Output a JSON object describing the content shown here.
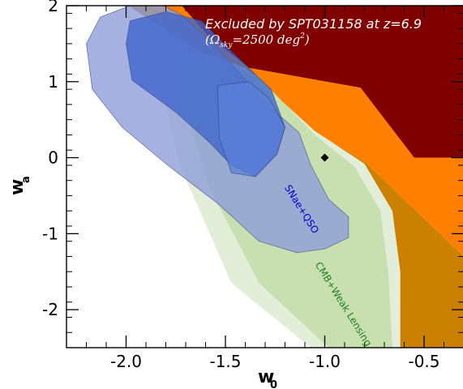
{
  "chart_data": {
    "type": "area",
    "xlabel": "w",
    "xlabel_sub": "0",
    "ylabel": "w",
    "ylabel_sub": "a",
    "xlim": [
      -2.3,
      -0.3
    ],
    "ylim": [
      -2.5,
      2.0
    ],
    "x_ticks": [
      -2.0,
      -1.5,
      -1.0,
      -0.5
    ],
    "x_tick_labels": [
      "-2.0",
      "-1.5",
      "-1.0",
      "-0.5"
    ],
    "y_ticks": [
      -2,
      -1,
      0,
      1,
      2
    ],
    "y_tick_labels": [
      "-2",
      "-1",
      "0",
      "1",
      "2"
    ],
    "grid": false,
    "annotation": {
      "line1": "Excluded by SPT031158 at z=6.9",
      "line2_pre": "(Ω",
      "line2_sub": "sky",
      "line2_mid": "=2500 deg",
      "line2_sup": "2",
      "line2_post": ")"
    },
    "colors": {
      "excluded_dark": "#800000",
      "excluded_orange": "#ff8000",
      "excluded_gold": "#cc8000",
      "cmb_light": "#e2eed8",
      "cmb_dark": "#c8e0b0",
      "sne_light": "#8c9cd8",
      "sne_dark": "#3c64cc",
      "marker": "#000000"
    },
    "marker": {
      "x": -1.0,
      "y": 0.0
    },
    "regions": [
      {
        "name": "Excluded (dark red)",
        "color": "#800000",
        "polygon": [
          [
            -1.72,
            2.0
          ],
          [
            -0.3,
            2.0
          ],
          [
            -0.3,
            0.0
          ],
          [
            -0.55,
            0.0
          ],
          [
            -0.82,
            0.92
          ],
          [
            -1.38,
            1.18
          ],
          [
            -1.58,
            1.58
          ],
          [
            -1.72,
            2.0
          ]
        ]
      },
      {
        "name": "Excluded (orange)",
        "color": "#ff8000",
        "polygon": [
          [
            -1.87,
            2.0
          ],
          [
            -1.72,
            2.0
          ],
          [
            -1.58,
            1.58
          ],
          [
            -1.38,
            1.18
          ],
          [
            -0.82,
            0.92
          ],
          [
            -0.55,
            0.0
          ],
          [
            -0.3,
            0.0
          ],
          [
            -0.3,
            -1.3
          ],
          [
            -0.8,
            -0.05
          ],
          [
            -1.15,
            0.5
          ],
          [
            -1.58,
            1.32
          ],
          [
            -1.87,
            2.0
          ]
        ]
      },
      {
        "name": "Excluded (gold)",
        "color": "#cc8000",
        "polygon": [
          [
            -1.99,
            2.0
          ],
          [
            -1.87,
            2.0
          ],
          [
            -1.58,
            1.32
          ],
          [
            -1.15,
            0.5
          ],
          [
            -0.8,
            -0.05
          ],
          [
            -0.3,
            -1.3
          ],
          [
            -0.3,
            -2.5
          ],
          [
            -0.62,
            -2.5
          ],
          [
            -0.62,
            -1.5
          ],
          [
            -0.66,
            -0.7
          ],
          [
            -0.8,
            -0.08
          ],
          [
            -1.05,
            0.35
          ],
          [
            -1.42,
            1.05
          ],
          [
            -1.99,
            2.0
          ]
        ]
      },
      {
        "name": "CMB+Weak Lensing (2σ)",
        "color": "#e2eed8",
        "polygon": [
          [
            -1.73,
            1.5
          ],
          [
            -1.4,
            1.18
          ],
          [
            -1.05,
            0.35
          ],
          [
            -0.8,
            -0.08
          ],
          [
            -0.66,
            -0.7
          ],
          [
            -0.62,
            -1.5
          ],
          [
            -0.62,
            -2.5
          ],
          [
            -1.07,
            -2.5
          ],
          [
            -1.47,
            -1.65
          ],
          [
            -1.73,
            -0.1
          ],
          [
            -1.83,
            1.0
          ],
          [
            -1.73,
            1.5
          ]
        ]
      },
      {
        "name": "CMB+Weak Lensing (1σ)",
        "color": "#c8e0b0",
        "polygon": [
          [
            -1.67,
            1.42
          ],
          [
            -1.34,
            1.08
          ],
          [
            -1.05,
            0.3
          ],
          [
            -0.85,
            -0.12
          ],
          [
            -0.72,
            -0.7
          ],
          [
            -0.68,
            -1.5
          ],
          [
            -0.66,
            -2.5
          ],
          [
            -0.98,
            -2.5
          ],
          [
            -1.33,
            -1.65
          ],
          [
            -1.58,
            -0.4
          ],
          [
            -1.73,
            0.9
          ],
          [
            -1.67,
            1.42
          ]
        ]
      },
      {
        "name": "SNae+QSO (2σ)",
        "color": "#8c9cd8",
        "polygon": [
          [
            -1.98,
            2.0
          ],
          [
            -1.81,
            2.0
          ],
          [
            -1.72,
            1.88
          ],
          [
            -1.53,
            1.42
          ],
          [
            -1.3,
            0.72
          ],
          [
            -1.13,
            0.33
          ],
          [
            -1.07,
            -0.1
          ],
          [
            -0.98,
            -0.55
          ],
          [
            -0.88,
            -0.78
          ],
          [
            -0.88,
            -1.05
          ],
          [
            -1.0,
            -1.2
          ],
          [
            -1.14,
            -1.25
          ],
          [
            -1.33,
            -1.1
          ],
          [
            -1.54,
            -0.6
          ],
          [
            -1.79,
            -0.1
          ],
          [
            -2.02,
            0.4
          ],
          [
            -2.17,
            0.9
          ],
          [
            -2.2,
            1.5
          ],
          [
            -2.13,
            1.85
          ],
          [
            -1.98,
            2.0
          ]
        ]
      },
      {
        "name": "SNae+QSO (1σ)",
        "color": "#3c64cc",
        "polygon": [
          [
            -1.98,
            1.8
          ],
          [
            -1.8,
            1.92
          ],
          [
            -1.62,
            1.8
          ],
          [
            -1.47,
            1.4
          ],
          [
            -1.27,
            0.9
          ],
          [
            -1.2,
            0.4
          ],
          [
            -1.24,
            0.05
          ],
          [
            -1.35,
            -0.25
          ],
          [
            -1.47,
            -0.1
          ],
          [
            -1.58,
            0.2
          ],
          [
            -1.75,
            0.6
          ],
          [
            -1.97,
            1.02
          ],
          [
            -2.0,
            1.5
          ],
          [
            -1.98,
            1.8
          ]
        ]
      },
      {
        "name": "SNae+QSO (inner overlap)",
        "color": "#5a80d8",
        "polygon": [
          [
            -1.54,
            0.95
          ],
          [
            -1.38,
            1.0
          ],
          [
            -1.28,
            0.78
          ],
          [
            -1.2,
            0.4
          ],
          [
            -1.24,
            0.05
          ],
          [
            -1.35,
            -0.25
          ],
          [
            -1.47,
            -0.2
          ],
          [
            -1.53,
            0.25
          ],
          [
            -1.54,
            0.95
          ]
        ]
      }
    ],
    "series_labels": [
      {
        "text": "SNae+QSO",
        "color": "#0000cc",
        "x": -1.13,
        "y": -0.7,
        "angle": 58
      },
      {
        "text": "CMB+Weak Lensing",
        "color": "#208020",
        "x": -0.92,
        "y": -1.95,
        "angle": 58
      }
    ]
  }
}
